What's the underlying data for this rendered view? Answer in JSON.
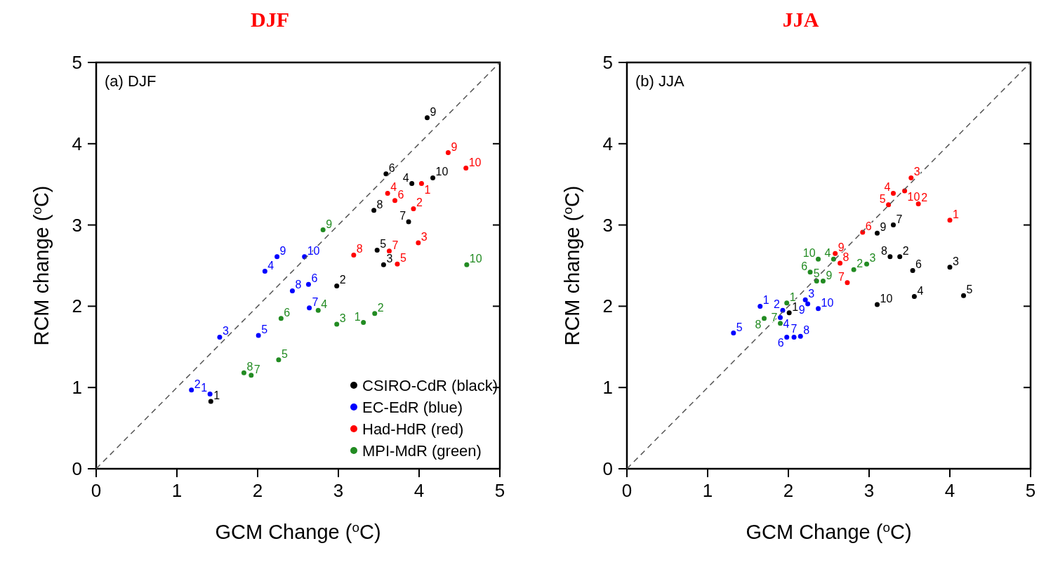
{
  "chart_data": [
    {
      "type": "scatter",
      "title": "DJF",
      "xlabel": "GCM Change ($^{o}$C)",
      "ylabel": "RCM change ($^{o}$C)",
      "xlim": [
        0,
        5
      ],
      "ylim": [
        0,
        5
      ],
      "xticks": [
        0,
        1,
        2,
        3,
        4,
        5
      ],
      "yticks": [
        0,
        1,
        2,
        3,
        4,
        5
      ],
      "grid": false,
      "legend": "bottom right",
      "marker": "circle",
      "annotations": [
        "(a) DJF",
        {
          "text": "1",
          "x": 1.42,
          "y": 0.83
        },
        {
          "text": "2",
          "x": 2.98,
          "y": 2.25
        },
        {
          "text": "3",
          "x": 3.56,
          "y": 2.51
        },
        {
          "text": "4",
          "x": 3.91,
          "y": 3.51
        },
        {
          "text": "5",
          "x": 3.48,
          "y": 2.69
        },
        {
          "text": "6",
          "x": 3.59,
          "y": 3.63
        },
        {
          "text": "7",
          "x": 3.87,
          "y": 3.04
        },
        {
          "text": "8",
          "x": 3.44,
          "y": 3.18
        },
        {
          "text": "9",
          "x": 4.1,
          "y": 4.32
        },
        {
          "text": "10",
          "x": 4.17,
          "y": 3.58
        },
        {
          "text": "1",
          "x": 1.41,
          "y": 0.92
        },
        {
          "text": "2",
          "x": 1.18,
          "y": 0.97
        },
        {
          "text": "3",
          "x": 1.53,
          "y": 1.62
        },
        {
          "text": "4",
          "x": 2.09,
          "y": 2.43
        },
        {
          "text": "5",
          "x": 2.01,
          "y": 1.64
        },
        {
          "text": "6",
          "x": 2.63,
          "y": 2.27
        },
        {
          "text": "7",
          "x": 2.64,
          "y": 1.98
        },
        {
          "text": "8",
          "x": 2.43,
          "y": 2.19
        },
        {
          "text": "9",
          "x": 2.24,
          "y": 2.61
        },
        {
          "text": "10",
          "x": 2.58,
          "y": 2.61
        },
        {
          "text": "1",
          "x": 4.03,
          "y": 3.51
        },
        {
          "text": "2",
          "x": 3.93,
          "y": 3.2
        },
        {
          "text": "3",
          "x": 3.99,
          "y": 2.78
        },
        {
          "text": "4",
          "x": 3.61,
          "y": 3.39
        },
        {
          "text": "5",
          "x": 3.73,
          "y": 2.52
        },
        {
          "text": "6",
          "x": 3.7,
          "y": 3.3
        },
        {
          "text": "7",
          "x": 3.63,
          "y": 2.68
        },
        {
          "text": "8",
          "x": 3.19,
          "y": 2.63
        },
        {
          "text": "9",
          "x": 4.36,
          "y": 3.89
        },
        {
          "text": "10",
          "x": 4.58,
          "y": 3.7
        },
        {
          "text": "1",
          "x": 3.31,
          "y": 1.8
        },
        {
          "text": "2",
          "x": 3.45,
          "y": 1.91
        },
        {
          "text": "3",
          "x": 2.98,
          "y": 1.78
        },
        {
          "text": "4",
          "x": 2.75,
          "y": 1.95
        },
        {
          "text": "5",
          "x": 2.26,
          "y": 1.34
        },
        {
          "text": "6",
          "x": 2.29,
          "y": 1.85
        },
        {
          "text": "7",
          "x": 1.92,
          "y": 1.15
        },
        {
          "text": "8",
          "x": 1.83,
          "y": 1.18
        },
        {
          "text": "9",
          "x": 2.81,
          "y": 2.94
        },
        {
          "text": "10",
          "x": 4.59,
          "y": 2.51
        }
      ],
      "series": [
        {
          "name": "CSIRO-CdR (black)",
          "color": "#000000",
          "x": [
            1.42,
            2.98,
            3.56,
            3.91,
            3.48,
            3.59,
            3.87,
            3.44,
            4.1,
            4.17
          ],
          "values": [
            0.83,
            2.25,
            2.51,
            3.51,
            2.69,
            3.63,
            3.04,
            3.18,
            4.32,
            3.58
          ]
        },
        {
          "name": "EC-EdR (blue)",
          "color": "#0000ff",
          "x": [
            1.41,
            1.18,
            1.53,
            2.09,
            2.01,
            2.63,
            2.64,
            2.43,
            2.24,
            2.58
          ],
          "values": [
            0.92,
            0.97,
            1.62,
            2.43,
            1.64,
            2.27,
            1.98,
            2.19,
            2.61,
            2.61
          ]
        },
        {
          "name": "Had-HdR (red)",
          "color": "#ff0000",
          "x": [
            4.03,
            3.93,
            3.99,
            3.61,
            3.73,
            3.7,
            3.63,
            3.19,
            4.36,
            4.58
          ],
          "values": [
            3.51,
            3.2,
            2.78,
            3.39,
            2.52,
            3.3,
            2.68,
            2.63,
            3.89,
            3.7
          ]
        },
        {
          "name": "MPI-MdR (green)",
          "color": "#228b22",
          "x": [
            3.31,
            3.45,
            2.98,
            2.75,
            2.26,
            2.29,
            1.92,
            1.83,
            2.81,
            4.59
          ],
          "values": [
            1.8,
            1.91,
            1.78,
            1.95,
            1.34,
            1.85,
            1.15,
            1.18,
            2.94,
            2.51
          ]
        },
        {
          "type": "line",
          "color": "#555555",
          "line_style": "dashed",
          "marker": "none",
          "x": [
            0,
            5
          ],
          "values": [
            0,
            5
          ]
        }
      ]
    },
    {
      "type": "scatter",
      "title": "JJA",
      "xlabel": "GCM Change ($^{o}$C)",
      "ylabel": "RCM change ($^{o}$C)",
      "xlim": [
        0,
        5
      ],
      "ylim": [
        0,
        5
      ],
      "xticks": [
        0,
        1,
        2,
        3,
        4,
        5
      ],
      "yticks": [
        0,
        1,
        2,
        3,
        4,
        5
      ],
      "grid": false,
      "legend": false,
      "marker": "circle",
      "annotations": [
        "(b) JJA",
        {
          "text": "1",
          "x": 2.01,
          "y": 1.92
        },
        {
          "text": "2",
          "x": 3.38,
          "y": 2.61
        },
        {
          "text": "3",
          "x": 4.0,
          "y": 2.48
        },
        {
          "text": "4",
          "x": 3.56,
          "y": 2.12
        },
        {
          "text": "5",
          "x": 4.17,
          "y": 2.13
        },
        {
          "text": "6",
          "x": 3.54,
          "y": 2.44
        },
        {
          "text": "7",
          "x": 3.3,
          "y": 3.0
        },
        {
          "text": "8",
          "x": 3.26,
          "y": 2.61
        },
        {
          "text": "9",
          "x": 3.1,
          "y": 2.9
        },
        {
          "text": "10",
          "x": 3.1,
          "y": 2.02
        },
        {
          "text": "1",
          "x": 1.65,
          "y": 2.0
        },
        {
          "text": "2",
          "x": 1.93,
          "y": 1.95
        },
        {
          "text": "3",
          "x": 2.21,
          "y": 2.08
        },
        {
          "text": "4",
          "x": 1.9,
          "y": 1.86
        },
        {
          "text": "5",
          "x": 1.32,
          "y": 1.67
        },
        {
          "text": "6",
          "x": 1.98,
          "y": 1.62
        },
        {
          "text": "7",
          "x": 2.07,
          "y": 1.62
        },
        {
          "text": "8",
          "x": 2.15,
          "y": 1.63
        },
        {
          "text": "9",
          "x": 2.24,
          "y": 2.03
        },
        {
          "text": "10",
          "x": 2.37,
          "y": 1.97
        },
        {
          "text": "1",
          "x": 4.0,
          "y": 3.06
        },
        {
          "text": "2",
          "x": 3.61,
          "y": 3.26
        },
        {
          "text": "3",
          "x": 3.52,
          "y": 3.58
        },
        {
          "text": "4",
          "x": 3.3,
          "y": 3.39
        },
        {
          "text": "5",
          "x": 3.24,
          "y": 3.25
        },
        {
          "text": "6",
          "x": 2.92,
          "y": 2.91
        },
        {
          "text": "7",
          "x": 2.73,
          "y": 2.29
        },
        {
          "text": "8",
          "x": 2.64,
          "y": 2.53
        },
        {
          "text": "9",
          "x": 2.58,
          "y": 2.65
        },
        {
          "text": "10",
          "x": 3.44,
          "y": 3.42
        },
        {
          "text": "1",
          "x": 1.98,
          "y": 2.04
        },
        {
          "text": "2",
          "x": 2.81,
          "y": 2.45
        },
        {
          "text": "3",
          "x": 2.97,
          "y": 2.52
        },
        {
          "text": "4",
          "x": 2.56,
          "y": 2.58
        },
        {
          "text": "5",
          "x": 2.35,
          "y": 2.31
        },
        {
          "text": "6",
          "x": 2.27,
          "y": 2.42
        },
        {
          "text": "7",
          "x": 1.9,
          "y": 1.79
        },
        {
          "text": "8",
          "x": 1.7,
          "y": 1.85
        },
        {
          "text": "9",
          "x": 2.43,
          "y": 2.31
        },
        {
          "text": "10",
          "x": 2.37,
          "y": 2.58
        }
      ],
      "series": [
        {
          "color": "#000000",
          "x": [
            2.01,
            3.38,
            4.0,
            3.56,
            4.17,
            3.54,
            3.3,
            3.26,
            3.1,
            3.1
          ],
          "values": [
            1.92,
            2.61,
            2.48,
            2.12,
            2.13,
            2.44,
            3.0,
            2.61,
            2.9,
            2.02
          ]
        },
        {
          "color": "#0000ff",
          "x": [
            1.65,
            1.93,
            2.21,
            1.9,
            1.32,
            1.98,
            2.07,
            2.15,
            2.24,
            2.37
          ],
          "values": [
            2.0,
            1.95,
            2.08,
            1.86,
            1.67,
            1.62,
            1.62,
            1.63,
            2.03,
            1.97
          ]
        },
        {
          "color": "#ff0000",
          "x": [
            4.0,
            3.61,
            3.52,
            3.3,
            3.24,
            2.92,
            2.73,
            2.64,
            2.58,
            3.44
          ],
          "values": [
            3.06,
            3.26,
            3.58,
            3.39,
            3.25,
            2.91,
            2.29,
            2.53,
            2.65,
            3.42
          ]
        },
        {
          "color": "#228b22",
          "x": [
            1.98,
            2.81,
            2.97,
            2.56,
            2.35,
            2.27,
            1.9,
            1.7,
            2.43,
            2.37
          ],
          "values": [
            2.04,
            2.45,
            2.52,
            2.58,
            2.31,
            2.42,
            1.79,
            1.85,
            2.31,
            2.58
          ]
        },
        {
          "type": "line",
          "color": "#555555",
          "line_style": "dashed",
          "marker": "none",
          "x": [
            0,
            5
          ],
          "values": [
            0,
            5
          ]
        }
      ]
    }
  ]
}
